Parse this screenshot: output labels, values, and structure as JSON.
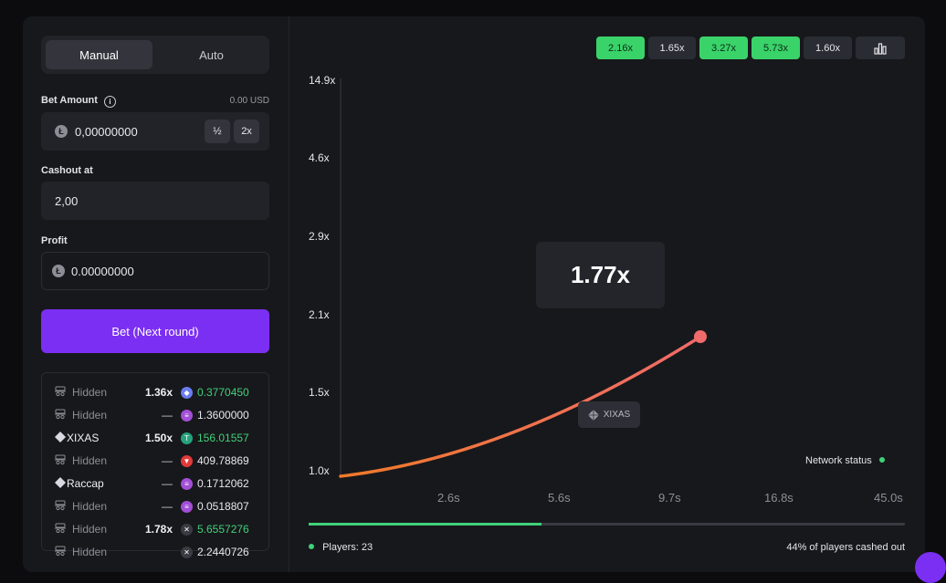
{
  "tabs": [
    {
      "label": "Manual",
      "active": true
    },
    {
      "label": "Auto",
      "active": false
    }
  ],
  "bet_amount": {
    "label": "Bet Amount",
    "usd": "0.00 USD",
    "value": "0,00000000",
    "half_label": "½",
    "double_label": "2x"
  },
  "cashout": {
    "label": "Cashout at",
    "value": "2,00"
  },
  "profit": {
    "label": "Profit",
    "value": "0.00000000"
  },
  "bet_button": "Bet (Next round)",
  "players": [
    {
      "name": "Hidden",
      "hidden": true,
      "mult": "1.36x",
      "amount": "0.3770450",
      "coin": "eth",
      "color": "#6b7cf0",
      "cashed": true
    },
    {
      "name": "Hidden",
      "hidden": true,
      "mult": "—",
      "amount": "1.3600000",
      "coin": "sol",
      "color": "#a24fd6",
      "cashed": false
    },
    {
      "name": "XIXAS",
      "hidden": false,
      "mult": "1.50x",
      "amount": "156.01557",
      "coin": "usdt",
      "color": "#26a17b",
      "cashed": true
    },
    {
      "name": "Hidden",
      "hidden": true,
      "mult": "—",
      "amount": "409.78869",
      "coin": "trx",
      "color": "#e03a3a",
      "cashed": false
    },
    {
      "name": "Raccap",
      "hidden": false,
      "mult": "—",
      "amount": "0.1712062",
      "coin": "sol",
      "color": "#a24fd6",
      "cashed": false
    },
    {
      "name": "Hidden",
      "hidden": true,
      "mult": "—",
      "amount": "0.0518807",
      "coin": "sol",
      "color": "#a24fd6",
      "cashed": false
    },
    {
      "name": "Hidden",
      "hidden": true,
      "mult": "1.78x",
      "amount": "5.6557276",
      "coin": "xrp",
      "color": "#3a3b42",
      "cashed": true
    },
    {
      "name": "Hidden",
      "hidden": true,
      "mult": "",
      "amount": "2.2440726",
      "coin": "xrp",
      "color": "#3a3b42",
      "cashed": false
    }
  ],
  "history": [
    {
      "value": "2.16x",
      "won": true
    },
    {
      "value": "1.65x",
      "won": false
    },
    {
      "value": "3.27x",
      "won": true
    },
    {
      "value": "5.73x",
      "won": true
    },
    {
      "value": "1.60x",
      "won": false
    }
  ],
  "stats_icon": "bar-chart-icon",
  "current_multiplier": "1.77x",
  "player_tag": "XIXAS",
  "network_status": "Network status",
  "players_count": "Players: 23",
  "cashed_out": "44% of players cashed out",
  "progress": 0.39,
  "chart_data": {
    "type": "line",
    "title": "",
    "xlabel": "",
    "ylabel": "",
    "y_ticks": [
      "14.9x",
      "4.6x",
      "2.9x",
      "2.1x",
      "1.5x",
      "1.0x"
    ],
    "x_ticks": [
      "2.6s",
      "5.6s",
      "9.7s",
      "16.8s",
      "45.0s"
    ],
    "series": [
      {
        "end_multiplier": 1.77,
        "color_start": "#f07a2a",
        "color_end": "#f06b6b"
      }
    ]
  },
  "colors": {
    "accent": "#7b2ff2",
    "green": "#3fd17a",
    "win": "#39d36a"
  }
}
